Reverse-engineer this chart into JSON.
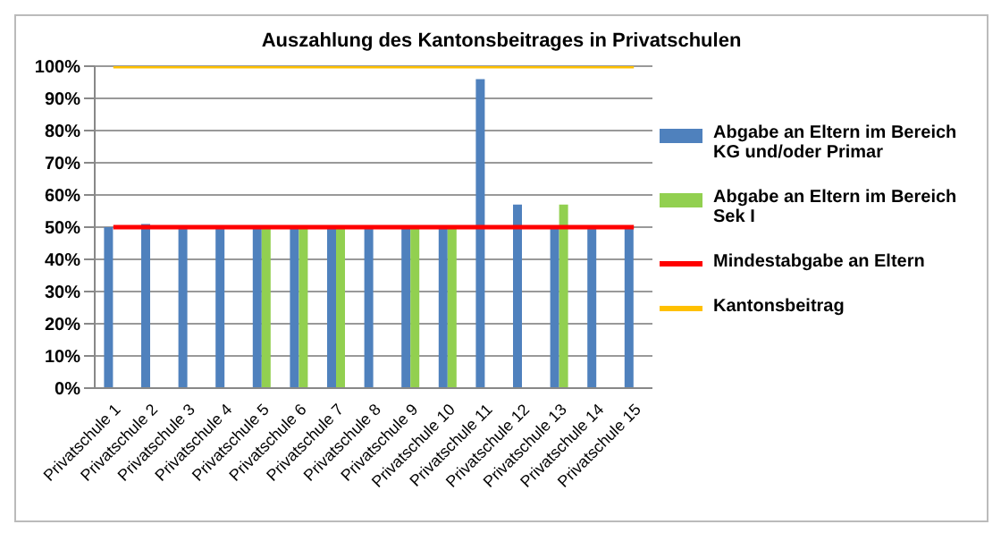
{
  "chart_data": {
    "type": "bar",
    "title": "Auszahlung des Kantonsbeitrages in Privatschulen",
    "categories": [
      "Privatschule 1",
      "Privatschule 2",
      "Privatschule 3",
      "Privatschule 4",
      "Privatschule 5",
      "Privatschule 6",
      "Privatschule 7",
      "Privatschule 8",
      "Privatschule 9",
      "Privatschule 10",
      "Privatschule 11",
      "Privatschule 12",
      "Privatschule 13",
      "Privatschule 14",
      "Privatschule 15"
    ],
    "series": [
      {
        "name": "Abgabe an Eltern im Bereich KG und/oder Primar",
        "color": "#4f81bd",
        "values": [
          50,
          51,
          50,
          50,
          50,
          50,
          50,
          50,
          50,
          50,
          96,
          57,
          50,
          50,
          50
        ]
      },
      {
        "name": "Abgabe an Eltern im Bereich Sek I",
        "color": "#92d050",
        "values": [
          null,
          null,
          null,
          null,
          50,
          50,
          50,
          null,
          50,
          50,
          null,
          null,
          57,
          null,
          null
        ]
      },
      {
        "name": "Mindestabgabe an Eltern",
        "type": "line",
        "color": "#ff0000",
        "values": [
          50,
          50,
          50,
          50,
          50,
          50,
          50,
          50,
          50,
          50,
          50,
          50,
          50,
          50,
          50
        ]
      },
      {
        "name": "Kantonsbeitrag",
        "type": "line",
        "color": "#ffc000",
        "values": [
          100,
          100,
          100,
          100,
          100,
          100,
          100,
          100,
          100,
          100,
          100,
          100,
          100,
          100,
          100
        ]
      }
    ],
    "ylim": [
      0,
      100
    ],
    "yticks": [
      {
        "value": 0,
        "label": "0%"
      },
      {
        "value": 10,
        "label": "10%"
      },
      {
        "value": 20,
        "label": "20%"
      },
      {
        "value": 30,
        "label": "30%"
      },
      {
        "value": 40,
        "label": "40%"
      },
      {
        "value": 50,
        "label": "50%"
      },
      {
        "value": 60,
        "label": "60%"
      },
      {
        "value": 70,
        "label": "70%"
      },
      {
        "value": 80,
        "label": "80%"
      },
      {
        "value": 90,
        "label": "90%"
      },
      {
        "value": 100,
        "label": "100%"
      }
    ],
    "grid": "y",
    "legend": "right",
    "marker": "none"
  }
}
